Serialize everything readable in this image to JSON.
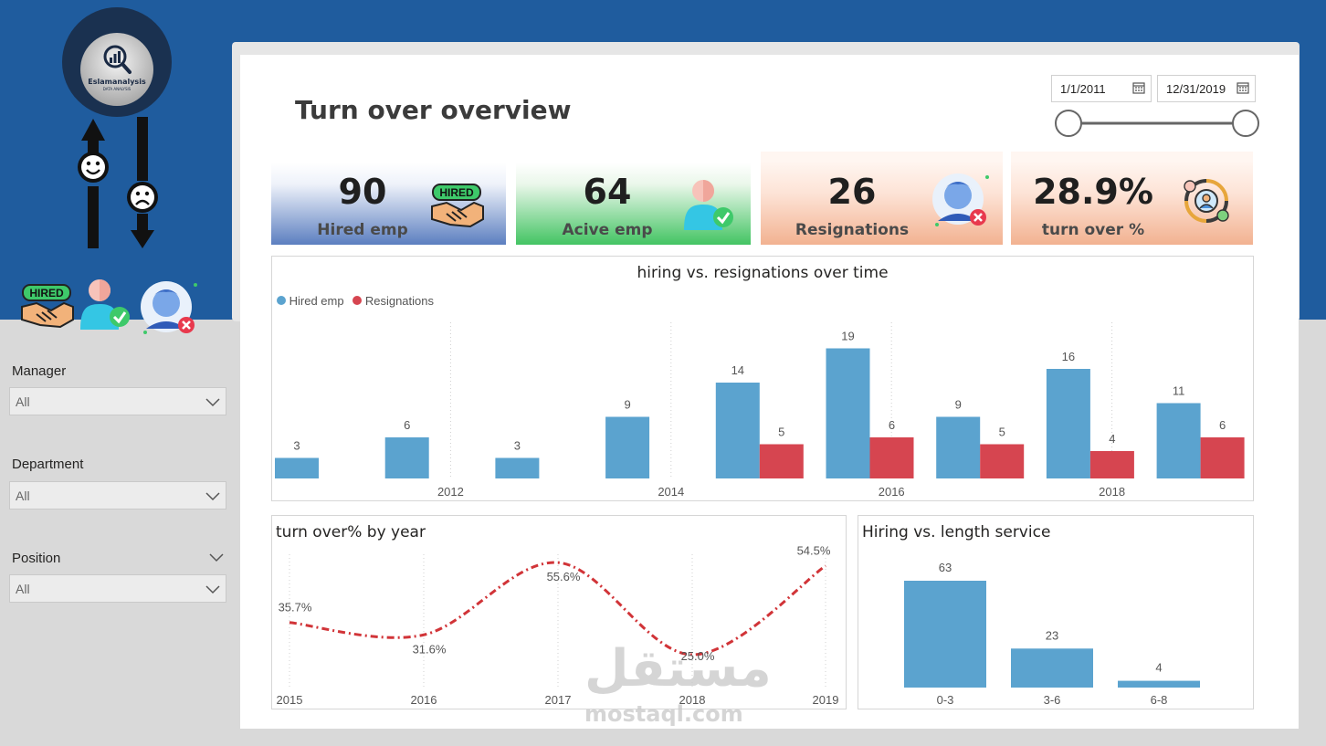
{
  "logo": {
    "name": "Eslamanalysis",
    "tagline": "DATA ANALYSIS"
  },
  "filters": [
    {
      "label": "Manager",
      "value": "All"
    },
    {
      "label": "Department",
      "value": "All"
    },
    {
      "label": "Position",
      "value": "All"
    }
  ],
  "header": {
    "title": "Turn over overview"
  },
  "date_range": {
    "start": "1/1/2011",
    "end": "12/31/2019",
    "slider_start_fraction": 0,
    "slider_end_fraction": 1
  },
  "kpis": [
    {
      "value": "90",
      "label": "Hired emp",
      "icon": "hired-handshake-icon"
    },
    {
      "value": "64",
      "label": "Acive emp",
      "icon": "active-employee-icon"
    },
    {
      "value": "26",
      "label": "Resignations",
      "icon": "resigned-employee-icon"
    },
    {
      "value": "28.9%",
      "label": "turn over %",
      "icon": "turnover-cycle-icon"
    }
  ],
  "sidebar_icons": [
    "hired-handshake-icon",
    "active-employee-icon",
    "resigned-employee-icon"
  ],
  "colors": {
    "header_blue": "#1f5c9e",
    "hired": "#5ba3cf",
    "resigned": "#d64550",
    "line": "#d13438"
  },
  "chart_data": [
    {
      "type": "bar",
      "title": "hiring vs. resignations over time",
      "legend_position": "top-left",
      "x_tick_labels": [
        "2012",
        "2014",
        "2016",
        "2018"
      ],
      "series": [
        {
          "name": "Hired emp",
          "values": [
            3,
            6,
            3,
            9,
            14,
            19,
            9,
            16,
            11
          ]
        },
        {
          "name": "Resignations",
          "values": [
            null,
            null,
            null,
            null,
            5,
            6,
            5,
            4,
            6
          ]
        }
      ],
      "ylim": [
        0,
        20
      ],
      "grid": false
    },
    {
      "type": "line",
      "title": "turn over% by year",
      "x": [
        "2015",
        "2016",
        "2017",
        "2018",
        "2019"
      ],
      "values": [
        35.7,
        31.6,
        55.6,
        25.0,
        54.5
      ],
      "value_labels": [
        "35.7%",
        "31.6%",
        "55.6%",
        "25.0%",
        "54.5%"
      ],
      "ylim": [
        15,
        62
      ]
    },
    {
      "type": "bar",
      "title": "Hiring vs. length service",
      "categories": [
        "0-3",
        "3-6",
        "6-8"
      ],
      "values": [
        63,
        23,
        4
      ],
      "ylim": [
        0,
        70
      ]
    }
  ],
  "watermark": {
    "arabic": "مستقل",
    "latin": "mostaql.com"
  }
}
